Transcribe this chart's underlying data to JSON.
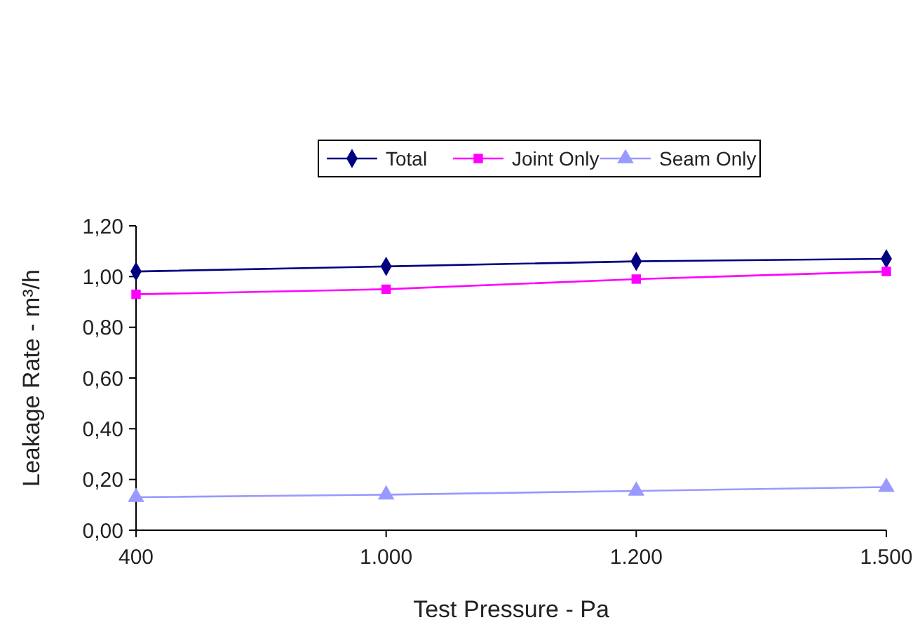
{
  "chart_data": {
    "type": "line",
    "xlabel": "Test Pressure - Pa",
    "ylabel": "Leakage Rate - m³/h",
    "categories": [
      "400",
      "1.000",
      "1.200",
      "1.500"
    ],
    "series": [
      {
        "name": "Total",
        "color": "#000080",
        "marker": "diamond",
        "values": [
          1.02,
          1.04,
          1.06,
          1.07
        ]
      },
      {
        "name": "Joint Only",
        "color": "#ff00ff",
        "marker": "square",
        "values": [
          0.93,
          0.95,
          0.99,
          1.02
        ]
      },
      {
        "name": "Seam Only",
        "color": "#9999ff",
        "marker": "triangle",
        "values": [
          0.13,
          0.14,
          0.155,
          0.17
        ]
      }
    ],
    "ylim": [
      0,
      1.2
    ],
    "yticks": [
      {
        "value": 0,
        "label": "0,00"
      },
      {
        "value": 0.2,
        "label": "0,20"
      },
      {
        "value": 0.4,
        "label": "0,40"
      },
      {
        "value": 0.6,
        "label": "0,60"
      },
      {
        "value": 0.8,
        "label": "0,80"
      },
      {
        "value": 1,
        "label": "1,00"
      },
      {
        "value": 1.2,
        "label": "1,20"
      }
    ],
    "legend": "top",
    "grid": false
  }
}
